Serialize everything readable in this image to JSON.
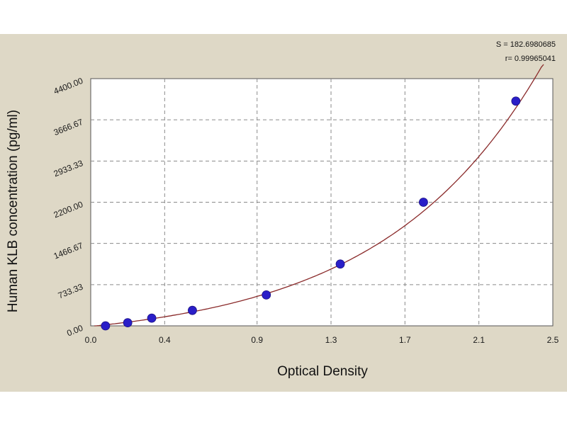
{
  "chart_data": {
    "type": "scatter",
    "title": "",
    "xlabel": "Optical Density",
    "ylabel": "Human KLB concentration (pg/ml)",
    "xlim": [
      0.0,
      2.5
    ],
    "ylim": [
      0,
      4400
    ],
    "x_ticks": [
      0.0,
      0.4,
      0.9,
      1.3,
      1.7,
      2.1,
      2.5
    ],
    "x_tick_labels": [
      "0.0",
      "0.4",
      "0.9",
      "1.3",
      "1.7",
      "2.1",
      "2.5"
    ],
    "y_ticks": [
      0,
      733.33,
      1466.67,
      2200,
      2933.33,
      3666.67,
      4400
    ],
    "y_tick_labels": [
      "0.00",
      "733.33",
      "1466.67",
      "2200.00",
      "2933.33",
      "3666.67",
      "4400.00"
    ],
    "grid": true,
    "points": {
      "x": [
        0.08,
        0.2,
        0.33,
        0.55,
        0.95,
        1.35,
        1.8,
        2.3
      ],
      "y": [
        0,
        55,
        137,
        275,
        550,
        1100,
        2200,
        4000
      ]
    },
    "fit_curve": {
      "x_range": [
        0.02,
        2.45
      ]
    },
    "annotations": [
      "S = 182.6980685",
      "r= 0.99965041"
    ],
    "colors": {
      "background": "#ded8c6",
      "plot_area": "#ffffff",
      "curve": "#8a2a2a",
      "points": "#2a1ec8",
      "grid": "#8a8a8a"
    }
  }
}
